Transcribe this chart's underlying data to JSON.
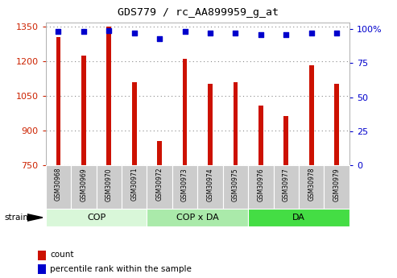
{
  "title": "GDS779 / rc_AA899959_g_at",
  "samples": [
    "GSM30968",
    "GSM30969",
    "GSM30970",
    "GSM30971",
    "GSM30972",
    "GSM30973",
    "GSM30974",
    "GSM30975",
    "GSM30976",
    "GSM30977",
    "GSM30978",
    "GSM30979"
  ],
  "counts": [
    1305,
    1225,
    1350,
    1110,
    855,
    1210,
    1105,
    1110,
    1010,
    965,
    1185,
    1105
  ],
  "percentiles": [
    98,
    98,
    99,
    97,
    93,
    98,
    97,
    97,
    96,
    96,
    97,
    97
  ],
  "groups": [
    {
      "label": "COP",
      "start": 0,
      "end": 3,
      "color": "#d9f7d9"
    },
    {
      "label": "COP x DA",
      "start": 4,
      "end": 7,
      "color": "#aaeaaa"
    },
    {
      "label": "DA",
      "start": 8,
      "end": 11,
      "color": "#44dd44"
    }
  ],
  "bar_color": "#cc1100",
  "dot_color": "#0000cc",
  "ylim_left": [
    750,
    1370
  ],
  "ylim_right": [
    0,
    105
  ],
  "yticks_left": [
    750,
    900,
    1050,
    1200,
    1350
  ],
  "yticks_right": [
    0,
    25,
    50,
    75,
    100
  ],
  "yticklabels_right": [
    "0",
    "25",
    "50",
    "75",
    "100%"
  ],
  "grid_color": "#888888",
  "bg_color": "#ffffff",
  "tick_label_color_left": "#cc2200",
  "tick_label_color_right": "#0000cc",
  "label_count": "count",
  "label_percentile": "percentile rank within the sample",
  "strain_label": "strain",
  "cell_color": "#cccccc",
  "bar_width": 0.18
}
